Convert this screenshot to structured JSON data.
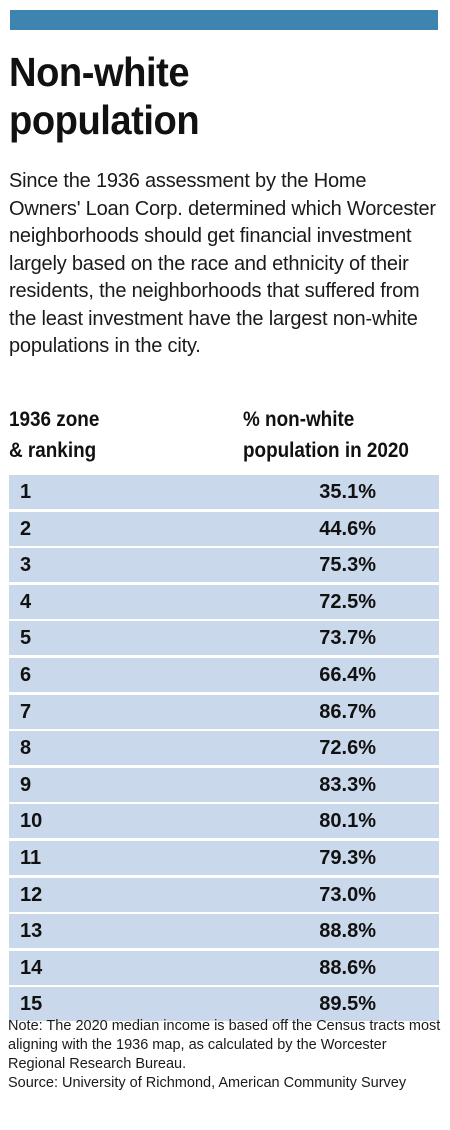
{
  "header": {
    "accent_color": "#3d84b0",
    "title_line1": "Non-white",
    "title_line2": "population",
    "intro": "Since the 1936 assessment by the Home Owners' Loan Corp. determined which Worcester neighborhoods should get financial investment largely based on the race and ethnicity of their residents, the neighborhoods that suffered from the least investment have the largest non-white populations in the city."
  },
  "columns": {
    "zone_line1": "1936 zone",
    "zone_line2": "& ranking",
    "pct_line1": "% non-white",
    "pct_line2": "population in 2020"
  },
  "chart_data": {
    "type": "table",
    "row_color": "#c9d8ea",
    "columns": [
      "1936 zone & ranking",
      "% non-white population in 2020"
    ],
    "rows": [
      {
        "zone": "1",
        "value": "35.1%"
      },
      {
        "zone": "2",
        "value": "44.6%"
      },
      {
        "zone": "3",
        "value": "75.3%"
      },
      {
        "zone": "4",
        "value": "72.5%"
      },
      {
        "zone": "5",
        "value": "73.7%"
      },
      {
        "zone": "6",
        "value": "66.4%"
      },
      {
        "zone": "7",
        "value": "86.7%"
      },
      {
        "zone": "8",
        "value": "72.6%"
      },
      {
        "zone": "9",
        "value": "83.3%"
      },
      {
        "zone": "10",
        "value": "80.1%"
      },
      {
        "zone": "11",
        "value": "79.3%"
      },
      {
        "zone": "12",
        "value": "73.0%"
      },
      {
        "zone": "13",
        "value": "88.8%"
      },
      {
        "zone": "14",
        "value": "88.6%"
      },
      {
        "zone": "15",
        "value": "89.5%"
      }
    ]
  },
  "footer": {
    "note": "Note: The 2020 median income is based off the Census tracts most aligning with the 1936 map, as calculated by the Worcester Regional Research Bureau.",
    "source": "Source: University of Richmond, American Community Survey"
  }
}
